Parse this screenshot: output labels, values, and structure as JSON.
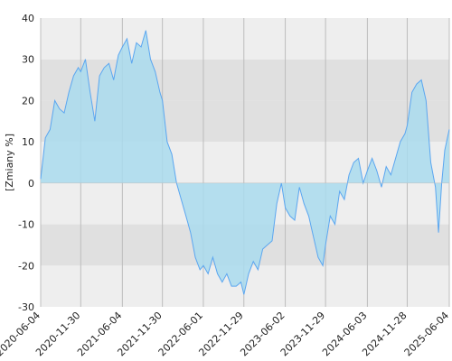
{
  "chart_data": {
    "type": "area",
    "title": "",
    "xlabel": "",
    "ylabel": "[Zmiany %]",
    "ylim": [
      -30,
      40
    ],
    "yticks": [
      -30,
      -20,
      -10,
      0,
      10,
      20,
      30,
      40
    ],
    "xticks": [
      "2020-06-04",
      "2020-11-30",
      "2021-06-04",
      "2021-11-30",
      "2022-06-01",
      "2022-11-29",
      "2023-06-02",
      "2023-11-29",
      "2024-06-03",
      "2024-11-28",
      "2025-06-04"
    ],
    "grid": "vertical lines at date ticks, alternating horizontal bands",
    "legend": "none",
    "colors": {
      "line": "#5ba6f0",
      "fill": "#a9daed",
      "band_light": "#eeeeee",
      "band_dark": "#e0e0e0",
      "gridline": "#bdbdbd"
    },
    "series": [
      {
        "x": [
          "2020-06-04",
          "2020-06-25",
          "2020-07-16",
          "2020-08-06",
          "2020-08-27",
          "2020-09-17",
          "2020-10-08",
          "2020-10-29",
          "2020-11-19",
          "2020-11-30",
          "2020-12-21",
          "2021-01-11",
          "2021-02-01",
          "2021-02-22",
          "2021-03-15",
          "2021-04-05",
          "2021-04-26",
          "2021-05-17",
          "2021-06-04",
          "2021-06-25",
          "2021-07-16",
          "2021-08-06",
          "2021-08-27",
          "2021-09-17",
          "2021-10-08",
          "2021-10-29",
          "2021-11-19",
          "2021-11-30",
          "2021-12-21",
          "2022-01-11",
          "2022-02-01",
          "2022-02-22",
          "2022-03-15",
          "2022-04-05",
          "2022-04-26",
          "2022-05-17",
          "2022-06-01",
          "2022-06-22",
          "2022-07-13",
          "2022-08-03",
          "2022-08-24",
          "2022-09-14",
          "2022-10-05",
          "2022-10-26",
          "2022-11-16",
          "2022-11-29",
          "2022-12-20",
          "2023-01-10",
          "2023-01-31",
          "2023-02-21",
          "2023-03-14",
          "2023-04-04",
          "2023-04-25",
          "2023-05-16",
          "2023-06-02",
          "2023-06-23",
          "2023-07-14",
          "2023-08-04",
          "2023-08-25",
          "2023-09-15",
          "2023-10-06",
          "2023-10-27",
          "2023-11-17",
          "2023-11-29",
          "2023-12-20",
          "2024-01-10",
          "2024-01-31",
          "2024-02-21",
          "2024-03-13",
          "2024-04-03",
          "2024-04-24",
          "2024-05-15",
          "2024-06-03",
          "2024-06-24",
          "2024-07-15",
          "2024-08-05",
          "2024-08-26",
          "2024-09-16",
          "2024-10-07",
          "2024-10-28",
          "2024-11-18",
          "2024-11-28",
          "2024-12-19",
          "2025-01-09",
          "2025-01-30",
          "2025-02-20",
          "2025-03-13",
          "2025-04-03",
          "2025-04-17",
          "2025-05-01",
          "2025-05-15",
          "2025-06-04"
        ],
        "y": [
          1,
          11,
          13,
          20,
          18,
          17,
          22,
          26,
          28,
          27,
          30,
          22,
          15,
          26,
          28,
          29,
          25,
          31,
          33,
          35,
          29,
          34,
          33,
          37,
          30,
          27,
          22,
          20,
          10,
          7,
          0,
          -4,
          -8,
          -12,
          -18,
          -21,
          -20,
          -22,
          -18,
          -22,
          -24,
          -22,
          -25,
          -25,
          -24,
          -27,
          -22,
          -19,
          -21,
          -16,
          -15,
          -14,
          -5,
          0,
          -6,
          -8,
          -9,
          -1,
          -5,
          -8,
          -13,
          -18,
          -20,
          -15,
          -8,
          -10,
          -2,
          -4,
          2,
          5,
          6,
          0,
          3,
          6,
          3,
          -1,
          4,
          2,
          6,
          10,
          12,
          14,
          22,
          24,
          25,
          20,
          5,
          -1,
          -12,
          0,
          8,
          13
        ]
      }
    ]
  }
}
